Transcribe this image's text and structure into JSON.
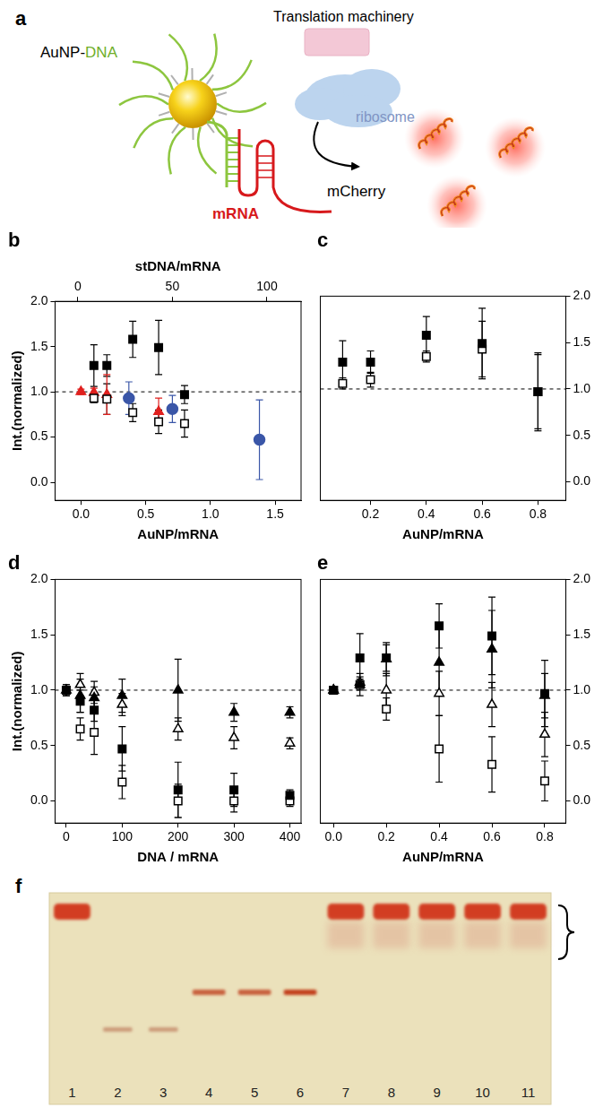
{
  "diagram": {
    "title": "a",
    "machinery": "Translation machinery",
    "particle": "AuNP-DNA",
    "ribosome": "ribosome",
    "mrna": "mRNA",
    "protein": "mCherry"
  },
  "chart_data": [
    {
      "type": "scatter",
      "title": "b",
      "x_label": "AuNP/mRNA",
      "x2_label": "stDNA/mRNA",
      "y_label": "Int.(normalized)",
      "xlim": [
        -0.2,
        1.7
      ],
      "xticks": [
        {
          "value": 0,
          "label": "0.0"
        },
        0.5,
        {
          "value": 1,
          "label": "1.0"
        },
        1.5
      ],
      "x2lim": [
        -12,
        118
      ],
      "x2ticks": [
        0,
        50,
        100
      ],
      "ylim": [
        -0.2,
        2.0
      ],
      "yticks": [
        {
          "value": 0,
          "label": "0.0"
        },
        0.5,
        {
          "value": 1,
          "label": "1.0"
        },
        1.5,
        {
          "value": 2,
          "label": "2.0"
        }
      ],
      "reference_y": 1,
      "grid": false,
      "series": [
        {
          "color": "#000000",
          "marker": "square",
          "x": [
            0.1,
            0.2,
            0.4,
            0.6,
            0.8
          ],
          "values": [
            1.29,
            1.29,
            1.58,
            1.49,
            0.97
          ],
          "errors": [
            0.23,
            0.12,
            0.2,
            0.3,
            0.1
          ]
        },
        {
          "color": "#000000",
          "marker": "open_square",
          "x": [
            0.1,
            0.2,
            0.4,
            0.6,
            0.8
          ],
          "values": [
            0.93,
            0.92,
            0.77,
            0.67,
            0.65
          ],
          "errors": [
            0.05,
            0.17,
            0.1,
            0.13,
            0.15
          ]
        },
        {
          "color": "#e0201e",
          "marker": "triangle",
          "x": [
            0,
            0.1,
            0.2,
            0.6
          ],
          "values": [
            1.0,
            0.99,
            0.97,
            0.78
          ],
          "errors": [
            0.03,
            0.05,
            0.22,
            0.15
          ]
        },
        {
          "color": "#3a56a8",
          "marker": "circle",
          "axis": "x2",
          "x": [
            27,
            50,
            96
          ],
          "values": [
            0.93,
            0.81,
            0.47
          ],
          "errors": [
            0.18,
            0.15,
            0.44
          ]
        }
      ]
    },
    {
      "type": "scatter",
      "title": "c",
      "x_label": "AuNP/mRNA",
      "xlim": [
        0.02,
        0.9
      ],
      "xticks": [
        0.2,
        0.4,
        0.6,
        0.8
      ],
      "ylim": [
        -0.2,
        2.0
      ],
      "yticks": [
        {
          "value": 0,
          "label": "0.0"
        },
        0.5,
        {
          "value": 1,
          "label": "1.0"
        },
        1.5,
        {
          "value": 2,
          "label": "2.0"
        }
      ],
      "reference_y": 1,
      "grid": false,
      "series": [
        {
          "color": "#000000",
          "marker": "square",
          "x": [
            0.1,
            0.2,
            0.4,
            0.6,
            0.8
          ],
          "values": [
            1.29,
            1.29,
            1.58,
            1.49,
            0.97
          ],
          "errors": [
            0.23,
            0.12,
            0.2,
            0.38,
            0.42
          ]
        },
        {
          "color": "#000000",
          "marker": "open_square",
          "x": [
            0.1,
            0.2,
            0.4,
            0.6,
            0.8
          ],
          "values": [
            1.06,
            1.1,
            1.35,
            1.43,
            0.97
          ],
          "errors": [
            0.06,
            0.08,
            0.06,
            0.3,
            0.4
          ]
        }
      ]
    },
    {
      "type": "scatter",
      "title": "d",
      "x_label": "DNA / mRNA",
      "y_label": "Int.(normalized)",
      "xlim": [
        -20,
        420
      ],
      "xticks": [
        0,
        100,
        200,
        300,
        400
      ],
      "ylim": [
        -0.2,
        2.0
      ],
      "yticks": [
        {
          "value": 0,
          "label": "0.0"
        },
        0.5,
        {
          "value": 1,
          "label": "1.0"
        },
        1.5,
        {
          "value": 2,
          "label": "2.0"
        }
      ],
      "reference_y": 1,
      "grid": false,
      "series": [
        {
          "color": "#000000",
          "marker": "square",
          "x": [
            0,
            25,
            50,
            100,
            200,
            300,
            400
          ],
          "values": [
            1.0,
            0.9,
            0.82,
            0.47,
            0.1,
            0.1,
            0.05
          ],
          "errors": [
            0.05,
            0.1,
            0.1,
            0.2,
            0.25,
            0.15,
            0.05
          ]
        },
        {
          "color": "#000000",
          "marker": "open_square",
          "x": [
            25,
            50,
            100,
            200,
            300,
            400
          ],
          "values": [
            0.65,
            0.62,
            0.17,
            0.0,
            0.0,
            0.0
          ],
          "errors": [
            0.1,
            0.2,
            0.15,
            0.15,
            0.1,
            0.05
          ]
        },
        {
          "color": "#000000",
          "marker": "triangle",
          "x": [
            0,
            25,
            50,
            100,
            200,
            300,
            400
          ],
          "values": [
            1.0,
            0.95,
            0.93,
            0.95,
            1.0,
            0.8,
            0.8
          ],
          "errors": [
            0.05,
            0.15,
            0.1,
            0.15,
            0.28,
            0.08,
            0.05
          ]
        },
        {
          "color": "#000000",
          "marker": "open_triangle",
          "x": [
            25,
            50,
            100,
            200,
            300,
            400
          ],
          "values": [
            1.05,
            0.98,
            0.87,
            0.65,
            0.57,
            0.52
          ],
          "errors": [
            0.1,
            0.1,
            0.1,
            0.1,
            0.1,
            0.05
          ]
        }
      ]
    },
    {
      "type": "scatter",
      "title": "e",
      "x_label": "AuNP/mRNA",
      "xlim": [
        -0.05,
        0.88
      ],
      "xticks": [
        {
          "value": 0,
          "label": "0.0"
        },
        0.2,
        0.4,
        0.6,
        0.8
      ],
      "ylim": [
        -0.2,
        2.0
      ],
      "yticks": [
        {
          "value": 0,
          "label": "0.0"
        },
        0.5,
        {
          "value": 1,
          "label": "1.0"
        },
        1.5,
        {
          "value": 2,
          "label": "2.0"
        }
      ],
      "reference_y": 1,
      "grid": false,
      "series": [
        {
          "color": "#000000",
          "marker": "square",
          "x": [
            0,
            0.1,
            0.2,
            0.4,
            0.6,
            0.8
          ],
          "values": [
            1.0,
            1.29,
            1.29,
            1.58,
            1.49,
            0.97
          ],
          "errors": [
            0.03,
            0.22,
            0.12,
            0.2,
            0.35,
            0.3
          ]
        },
        {
          "color": "#000000",
          "marker": "triangle",
          "x": [
            0,
            0.1,
            0.2,
            0.4,
            0.6,
            0.8
          ],
          "values": [
            1.0,
            1.05,
            1.28,
            1.25,
            1.37,
            0.95
          ],
          "errors": [
            0.03,
            0.1,
            0.15,
            0.3,
            0.35,
            0.2
          ]
        },
        {
          "color": "#000000",
          "marker": "open_triangle",
          "x": [
            0,
            0.1,
            0.2,
            0.4,
            0.6,
            0.8
          ],
          "values": [
            1.0,
            1.07,
            1.0,
            0.97,
            0.87,
            0.6
          ],
          "errors": [
            0.02,
            0.05,
            0.15,
            0.2,
            0.2,
            0.2
          ]
        },
        {
          "color": "#000000",
          "marker": "open_square",
          "x": [
            0,
            0.1,
            0.2,
            0.4,
            0.6,
            0.8
          ],
          "values": [
            1.0,
            1.05,
            0.83,
            0.47,
            0.33,
            0.18
          ],
          "errors": [
            0.02,
            0.05,
            0.1,
            0.3,
            0.25,
            0.18
          ]
        }
      ]
    }
  ],
  "gel": {
    "title": "f",
    "lanes": [
      "1",
      "2",
      "3",
      "4",
      "5",
      "6",
      "7",
      "8",
      "9",
      "10",
      "11"
    ]
  }
}
